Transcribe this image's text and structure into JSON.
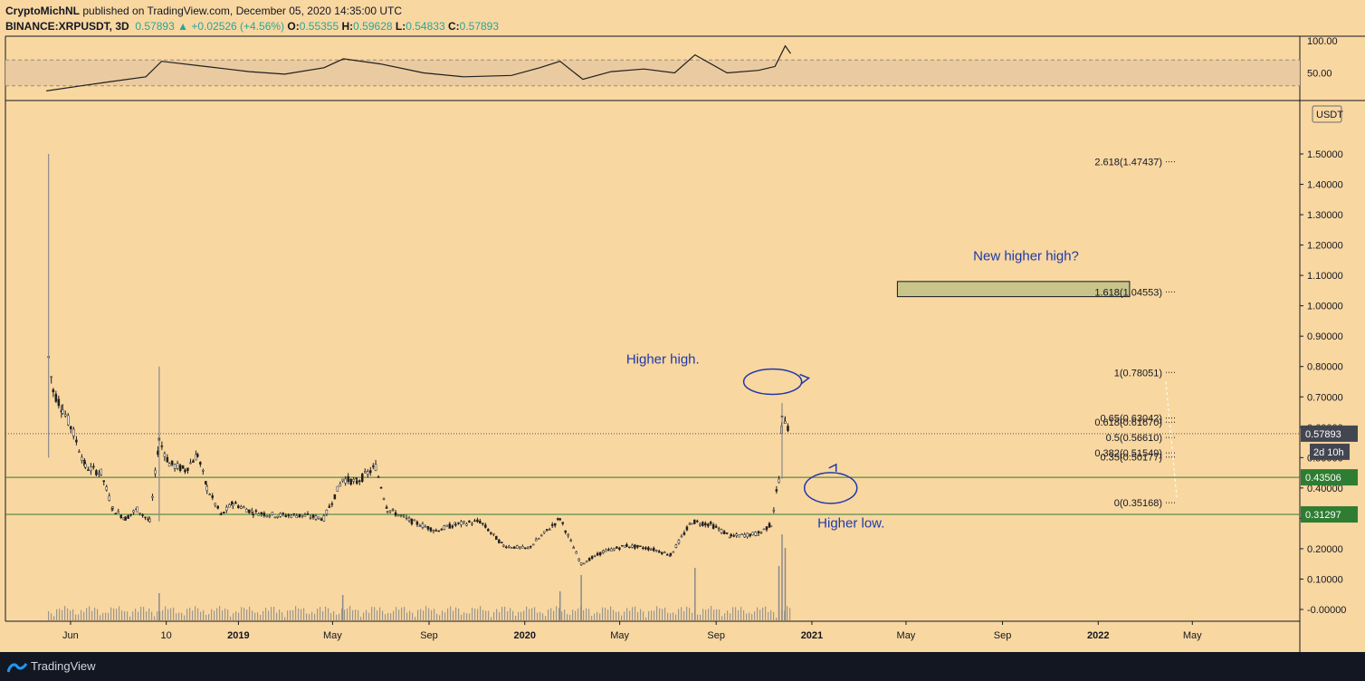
{
  "header": {
    "publisher": "CryptoMichNL",
    "published_text": "published on TradingView.com, December 05, 2020 14:35:00 UTC",
    "symbol": "BINANCE:XRPUSDT, 3D",
    "last": "0.57893",
    "change": "+0.02526 (+4.56%)",
    "o_label": "O:",
    "o": "0.55355",
    "h_label": "H:",
    "h": "0.59628",
    "l_label": "L:",
    "l": "0.54833",
    "c_label": "C:",
    "c": "0.57893"
  },
  "footer": {
    "brand": "TradingView"
  },
  "colors": {
    "background": "#f9d7a1",
    "candle": "#1f1f1f",
    "support_line": "#2e7d32",
    "price_badge": "#434651",
    "support_badge": "#2e7d32",
    "annotation": "#1e3aa8",
    "target_box": "#c9c48a"
  },
  "chart_data": {
    "type": "candlestick",
    "currency_label": "USDT",
    "price_ticks": [
      "1.50000",
      "1.40000",
      "1.30000",
      "1.20000",
      "1.10000",
      "1.00000",
      "0.90000",
      "0.80000",
      "0.70000",
      "0.60000",
      "0.50000",
      "0.40000",
      "0.30000",
      "0.20000",
      "0.10000",
      "-0.00000"
    ],
    "ylim": [
      0,
      1.6
    ],
    "x_ticks": [
      "Jun",
      "10",
      "2019",
      "May",
      "Sep",
      "2020",
      "May",
      "Sep",
      "2021",
      "May",
      "Sep",
      "2022",
      "May"
    ],
    "x_tick_dates": [
      "2018-06-01",
      "2018-10-01",
      "2019-01-01",
      "2019-05-01",
      "2019-09-01",
      "2020-01-01",
      "2020-05-01",
      "2020-09-01",
      "2021-01-01",
      "2021-05-01",
      "2021-09-01",
      "2022-01-01",
      "2022-05-01"
    ],
    "xlim": [
      "2018-03-10",
      "2022-09-15"
    ],
    "price_path": [
      {
        "t": "2018-05-04",
        "p": 0.83
      },
      {
        "t": "2018-05-10",
        "p": 0.72
      },
      {
        "t": "2018-05-22",
        "p": 0.66
      },
      {
        "t": "2018-06-05",
        "p": 0.58
      },
      {
        "t": "2018-06-20",
        "p": 0.47
      },
      {
        "t": "2018-07-10",
        "p": 0.45
      },
      {
        "t": "2018-07-25",
        "p": 0.33
      },
      {
        "t": "2018-08-10",
        "p": 0.3
      },
      {
        "t": "2018-08-25",
        "p": 0.33
      },
      {
        "t": "2018-09-10",
        "p": 0.29
      },
      {
        "t": "2018-09-22",
        "p": 0.56
      },
      {
        "t": "2018-10-05",
        "p": 0.48
      },
      {
        "t": "2018-10-25",
        "p": 0.46
      },
      {
        "t": "2018-11-10",
        "p": 0.51
      },
      {
        "t": "2018-11-22",
        "p": 0.4
      },
      {
        "t": "2018-12-10",
        "p": 0.31
      },
      {
        "t": "2018-12-25",
        "p": 0.35
      },
      {
        "t": "2019-01-20",
        "p": 0.32
      },
      {
        "t": "2019-02-20",
        "p": 0.31
      },
      {
        "t": "2019-03-20",
        "p": 0.31
      },
      {
        "t": "2019-04-20",
        "p": 0.3
      },
      {
        "t": "2019-05-14",
        "p": 0.43
      },
      {
        "t": "2019-06-01",
        "p": 0.42
      },
      {
        "t": "2019-06-25",
        "p": 0.47
      },
      {
        "t": "2019-07-10",
        "p": 0.33
      },
      {
        "t": "2019-08-10",
        "p": 0.29
      },
      {
        "t": "2019-09-10",
        "p": 0.26
      },
      {
        "t": "2019-10-05",
        "p": 0.28
      },
      {
        "t": "2019-11-05",
        "p": 0.29
      },
      {
        "t": "2019-12-05",
        "p": 0.21
      },
      {
        "t": "2020-01-05",
        "p": 0.2
      },
      {
        "t": "2020-02-15",
        "p": 0.3
      },
      {
        "t": "2020-03-13",
        "p": 0.15
      },
      {
        "t": "2020-04-10",
        "p": 0.19
      },
      {
        "t": "2020-05-10",
        "p": 0.21
      },
      {
        "t": "2020-06-10",
        "p": 0.2
      },
      {
        "t": "2020-07-05",
        "p": 0.18
      },
      {
        "t": "2020-08-01",
        "p": 0.29
      },
      {
        "t": "2020-08-25",
        "p": 0.28
      },
      {
        "t": "2020-09-20",
        "p": 0.24
      },
      {
        "t": "2020-10-25",
        "p": 0.25
      },
      {
        "t": "2020-11-10",
        "p": 0.28
      },
      {
        "t": "2020-11-20",
        "p": 0.43
      },
      {
        "t": "2020-11-24",
        "p": 0.62
      },
      {
        "t": "2020-11-28",
        "p": 0.63
      },
      {
        "t": "2020-12-04",
        "p": 0.58
      }
    ],
    "wicks": [
      {
        "t": "2018-05-04",
        "high": 1.5,
        "low": 0.5
      },
      {
        "t": "2018-09-22",
        "high": 0.8,
        "low": 0.29
      },
      {
        "t": "2020-11-24",
        "high": 0.68,
        "low": 0.43
      }
    ],
    "horizontal_levels": [
      {
        "value": 0.57893,
        "label": "0.57893",
        "style": "dotted"
      },
      {
        "value": 0.43506,
        "label": "0.43506",
        "style": "solid"
      },
      {
        "value": 0.31297,
        "label": "0.31297",
        "style": "solid"
      }
    ],
    "countdown": "2d 10h",
    "fibonacci": [
      {
        "label": "2.618(1.47437)",
        "value": 1.47437
      },
      {
        "label": "1.618(1.04553)",
        "value": 1.04553
      },
      {
        "label": "1(0.78051)",
        "value": 0.78051
      },
      {
        "label": "0.65(0.63042)",
        "value": 0.63042
      },
      {
        "label": "0.618(0.61670)",
        "value": 0.6167
      },
      {
        "label": "0.5(0.56610)",
        "value": 0.5661
      },
      {
        "label": "0.382(0.51549)",
        "value": 0.51549
      },
      {
        "label": "0.35(0.50177)",
        "value": 0.50177
      },
      {
        "label": "0(0.35168)",
        "value": 0.35168
      }
    ],
    "target_box": {
      "from": "2021-04-20",
      "to": "2022-02-10",
      "high": 1.08,
      "low": 1.03
    },
    "annotations": [
      {
        "text": "New higher high?",
        "t": "2021-10-01",
        "p": 1.15
      },
      {
        "text": "Higher high.",
        "t": "2020-06-25",
        "p": 0.81
      },
      {
        "text": "Higher low.",
        "t": "2021-02-20",
        "p": 0.27
      }
    ],
    "rsi": {
      "ticks": [
        "100.00",
        "50.00"
      ],
      "band": [
        30,
        70
      ],
      "path": [
        {
          "t": "2018-05-01",
          "v": 22
        },
        {
          "t": "2018-06-15",
          "v": 30
        },
        {
          "t": "2018-07-20",
          "v": 36
        },
        {
          "t": "2018-09-05",
          "v": 44
        },
        {
          "t": "2018-09-25",
          "v": 68
        },
        {
          "t": "2018-11-20",
          "v": 60
        },
        {
          "t": "2019-01-15",
          "v": 52
        },
        {
          "t": "2019-03-01",
          "v": 48
        },
        {
          "t": "2019-04-20",
          "v": 58
        },
        {
          "t": "2019-05-15",
          "v": 72
        },
        {
          "t": "2019-07-01",
          "v": 64
        },
        {
          "t": "2019-08-25",
          "v": 50
        },
        {
          "t": "2019-10-15",
          "v": 44
        },
        {
          "t": "2019-12-15",
          "v": 46
        },
        {
          "t": "2020-01-20",
          "v": 58
        },
        {
          "t": "2020-02-15",
          "v": 68
        },
        {
          "t": "2020-03-15",
          "v": 40
        },
        {
          "t": "2020-04-20",
          "v": 52
        },
        {
          "t": "2020-06-01",
          "v": 56
        },
        {
          "t": "2020-07-10",
          "v": 50
        },
        {
          "t": "2020-08-05",
          "v": 78
        },
        {
          "t": "2020-09-15",
          "v": 50
        },
        {
          "t": "2020-10-25",
          "v": 54
        },
        {
          "t": "2020-11-15",
          "v": 60
        },
        {
          "t": "2020-11-28",
          "v": 92
        },
        {
          "t": "2020-12-05",
          "v": 80
        }
      ]
    }
  }
}
